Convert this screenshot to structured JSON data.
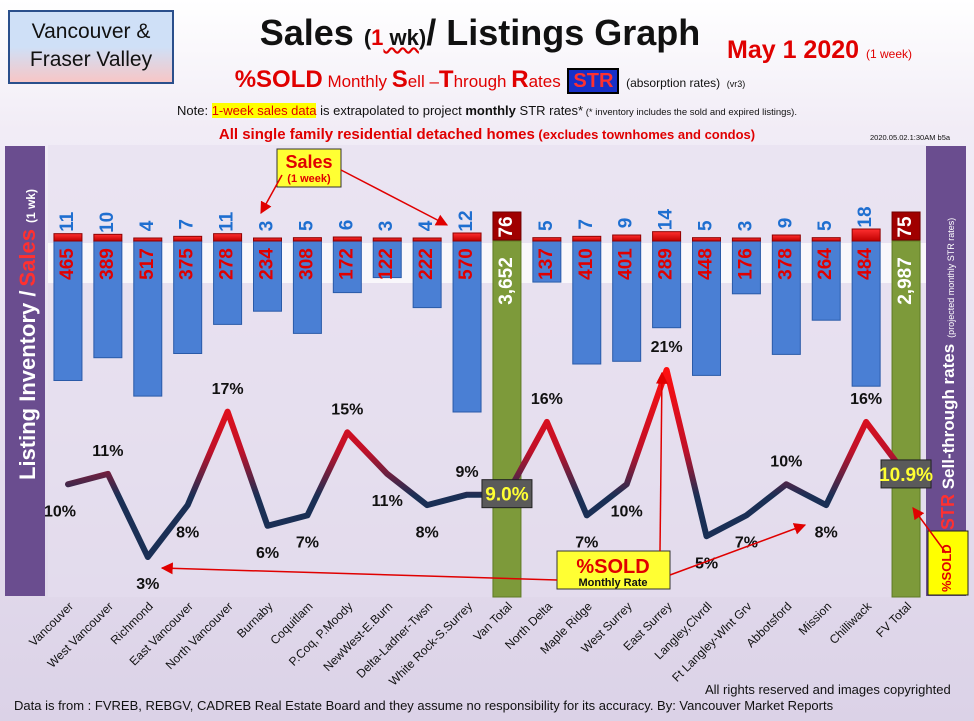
{
  "header": {
    "region_line1": "Vancouver &",
    "region_line2": "Fraser Valley",
    "title_a": "Sales ",
    "title_b": "(",
    "title_c": "1",
    "title_d": " wk",
    "title_e": ")",
    "title_f": "/ Listings Graph",
    "date": "May 1  2020",
    "date_sub": "(1 week)",
    "sub_a": "%SOLD",
    "sub_b": " Monthly ",
    "sub_c": "S",
    "sub_d": "ell –",
    "sub_e": "T",
    "sub_f": "hrough ",
    "sub_g": "R",
    "sub_h": "ates",
    "sub_str": "STR",
    "sub_abs": "(absorption rates)",
    "sub_vr": "(vr3)",
    "note_a": "Note: ",
    "note_hl": "1-week sales data",
    "note_b": " is extrapolated to project ",
    "note_c": "monthly",
    "note_d": " STR rates*",
    "note_e": " (* inventory includes the sold and expired listings).",
    "scope_a": "All single family residential detached homes",
    "scope_b": " (excludes townhomes and condos)",
    "stamp": "2020.05.02.1:30AM b5a"
  },
  "left_label": {
    "a": "Listing Inventory /",
    "b": "Sales",
    "c": "(1 wk)"
  },
  "right_label": {
    "a": "STR",
    "b": " Sell-through rates",
    "c": "(projected monthly STR rates)"
  },
  "callouts": {
    "sales_title": "Sales",
    "sales_sub": "(1 week)",
    "sold_title": "%SOLD",
    "sold_sub": "Monthly Rate",
    "right_sold": "%SOLD",
    "right_str": "STR"
  },
  "footer": {
    "source": "Data is from : FVREB, REBGV, CADREB Real Estate Board and they assume no responsibility for its accuracy. By: Vancouver Market Reports",
    "rights": "All rights reserved and  images copyrighted"
  },
  "colors": {
    "bar_blue": "#4a7fd4",
    "bar_total": "#7d9a3a",
    "sales_red": "#ee0000",
    "line_low": "#1a2f55",
    "line_high": "#ff1010",
    "sales_label": "#1f6fd0",
    "inventory_label": "#e00000"
  },
  "chart_data": {
    "type": "bar",
    "categories": [
      "Vancouver",
      "West Vancouver",
      "Richmond",
      "East Vancouver",
      "North Vancouver",
      "Burnaby",
      "Coquitlam",
      "P.Coq, P.Moody",
      "NewWest-E.Burn",
      "Delta-Ladner-Twsn",
      "White Rock-S.Surrey",
      "Van Total",
      "North Delta",
      "Maple Ridge",
      "West Surrey",
      "East Surrey",
      "Langley,Clvrdl",
      "Ft Langley-Wlnt Grv",
      "Abbotsford",
      "Mission",
      "Chilliwack",
      "FV Total"
    ],
    "series": [
      {
        "name": "Sales",
        "values": [
          11,
          10,
          4,
          7,
          11,
          3,
          5,
          6,
          3,
          4,
          12,
          76,
          5,
          7,
          9,
          14,
          5,
          3,
          9,
          5,
          18,
          75
        ]
      },
      {
        "name": "Listing Inventory",
        "values": [
          465,
          389,
          517,
          375,
          278,
          234,
          308,
          172,
          122,
          222,
          570,
          3652,
          137,
          410,
          401,
          289,
          448,
          176,
          378,
          264,
          484,
          2987
        ]
      },
      {
        "name": "%SOLD",
        "values": [
          10,
          11,
          3,
          8,
          17,
          6,
          7,
          15,
          11,
          8,
          9,
          9.0,
          16,
          7,
          10,
          21,
          5,
          7,
          10,
          8,
          16,
          10.9
        ]
      }
    ],
    "sold_labels": [
      "10%",
      "11%",
      "3%",
      "8%",
      "17%",
      "6%",
      "7%",
      "15%",
      "11%",
      "8%",
      "9%",
      "9.0%",
      "16%",
      "7%",
      "10%",
      "21%",
      "5%",
      "7%",
      "10%",
      "8%",
      "16%",
      "10.9%"
    ],
    "inventory_labels": [
      "465",
      "389",
      "517",
      "375",
      "278",
      "234",
      "308",
      "172",
      "122",
      "222",
      "570",
      "3,652",
      "137",
      "410",
      "401",
      "289",
      "448",
      "176",
      "378",
      "264",
      "484",
      "2,987"
    ],
    "totals": [
      11,
      21
    ],
    "xlabel": "",
    "ylabel": "Listing Inventory / Sales (1 wk)",
    "ylabel_right": "STR Sell-through rates (projected monthly STR rates)",
    "grid": false
  }
}
